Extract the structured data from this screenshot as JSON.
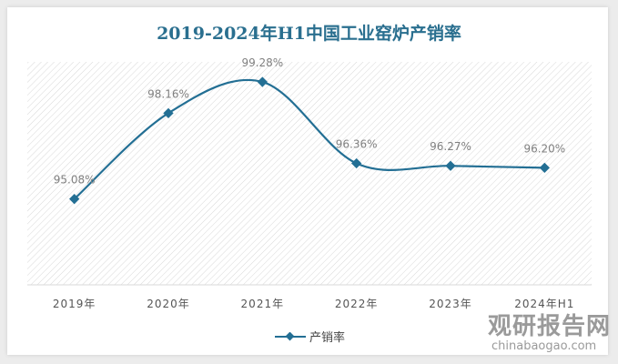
{
  "chart_data": {
    "type": "line",
    "title": "2019-2024年H1中国工业窑炉产销率",
    "categories": [
      "2019年",
      "2020年",
      "2021年",
      "2022年",
      "2023年",
      "2024年H1"
    ],
    "series": [
      {
        "name": "产销率",
        "values": [
          95.08,
          98.16,
          99.28,
          96.36,
          96.27,
          96.2
        ],
        "color": "#236f94"
      }
    ],
    "data_labels": [
      "95.08%",
      "98.16%",
      "99.28%",
      "96.36%",
      "96.27%",
      "96.20%"
    ],
    "ylim": [
      92,
      100
    ],
    "legend": "bottom",
    "smooth": true
  },
  "watermark": {
    "cn": "观研报告网",
    "en": "chinabaogao.com"
  }
}
